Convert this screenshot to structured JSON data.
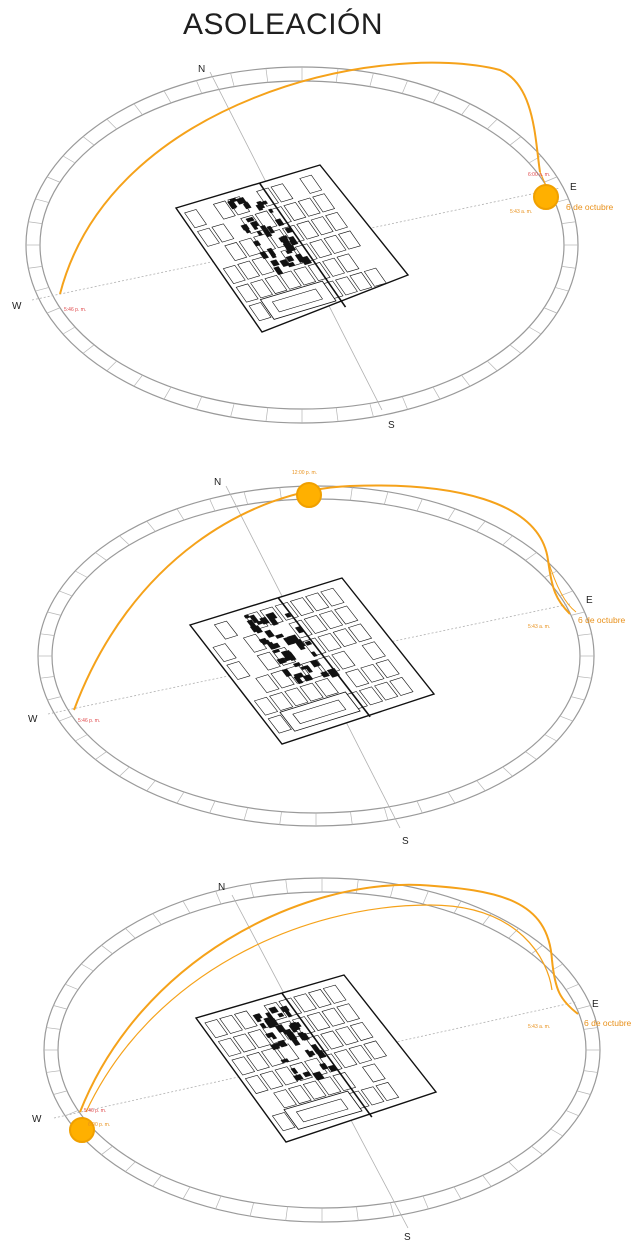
{
  "title": "ASOLEACIÓN",
  "colors": {
    "sun": "#ffb000",
    "sun_outline": "#f0a000",
    "sun_path": "#f5a21a",
    "time_red": "#e0484b",
    "time_orange": "#e8901a",
    "ring": "#9a9a9a",
    "guide": "#b0b0b0",
    "map": "#111111"
  },
  "diagrams": [
    {
      "compass": {
        "n": "N",
        "e": "E",
        "s": "S",
        "w": "W"
      },
      "sun_time": "6:00 a. m.",
      "sunrise_time": "5:43 a. m.",
      "sunset_time": "5:46 p. m.",
      "date": "6 de octubre",
      "sun_position": "sunrise"
    },
    {
      "compass": {
        "n": "N",
        "e": "E",
        "s": "S",
        "w": "W"
      },
      "sun_time": "12:00 p. m.",
      "sunrise_time": "5:43 a. m.",
      "sunset_time": "5:46 p. m.",
      "date": "6 de octubre",
      "sun_position": "noon"
    },
    {
      "compass": {
        "n": "N",
        "e": "E",
        "s": "S",
        "w": "W"
      },
      "sun_time": "6:00 p. m.",
      "sunrise_time": "5:43 a. m.",
      "sunset_time": "5:46 p. m.",
      "date": "6 de octubre",
      "sun_position": "sunset"
    }
  ]
}
